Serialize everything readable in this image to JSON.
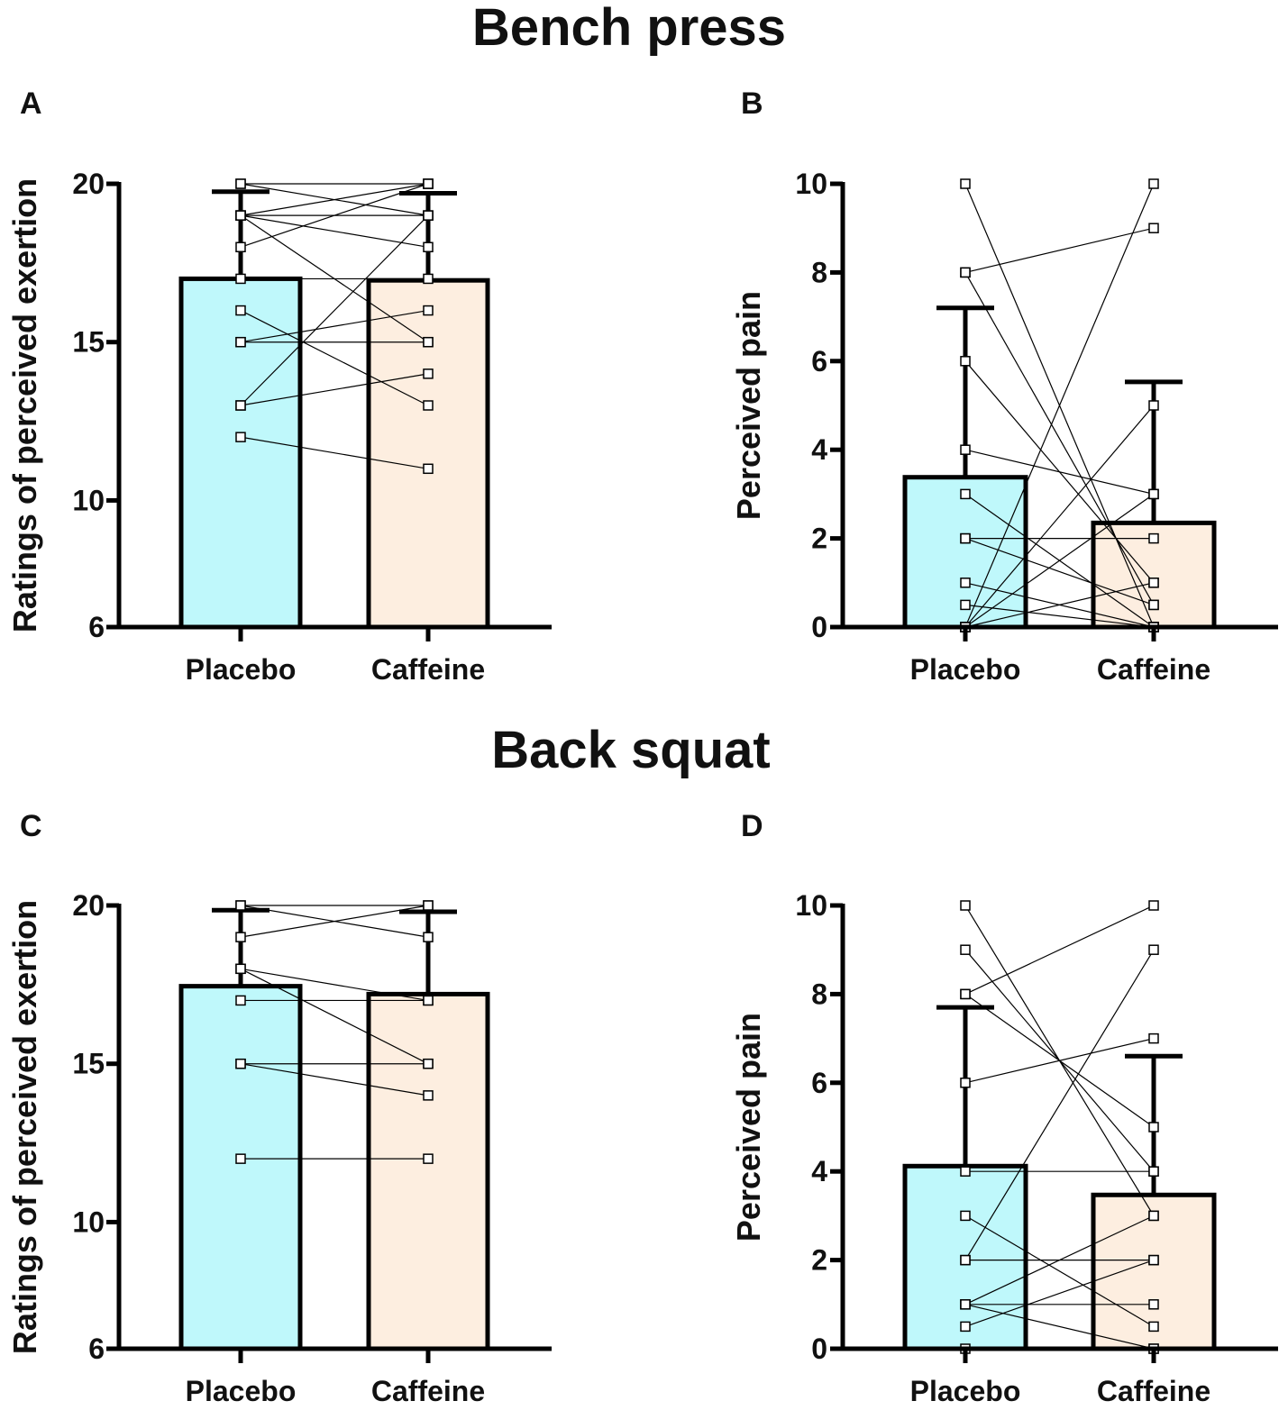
{
  "sections": [
    {
      "title": "Bench press"
    },
    {
      "title": "Back squat"
    }
  ],
  "chart_data": [
    {
      "type": "bar",
      "panel": "A",
      "ylabel": "Ratings of perceived exertion",
      "ylim": [
        6,
        20
      ],
      "yticks": [
        6,
        10,
        15,
        20
      ],
      "categories": [
        "Placebo",
        "Caffeine"
      ],
      "bar_colors": [
        "#bff8fb",
        "#fdeee0"
      ],
      "values": [
        17.0,
        16.95
      ],
      "error": [
        2.75,
        2.75
      ],
      "paired": [
        [
          20,
          19
        ],
        [
          20,
          20
        ],
        [
          19,
          20
        ],
        [
          19,
          19
        ],
        [
          19,
          18
        ],
        [
          19,
          15
        ],
        [
          18,
          20
        ],
        [
          17,
          17
        ],
        [
          16,
          13
        ],
        [
          15,
          16
        ],
        [
          15,
          15
        ],
        [
          13,
          14
        ],
        [
          13,
          19
        ],
        [
          12,
          11
        ]
      ]
    },
    {
      "type": "bar",
      "panel": "B",
      "ylabel": "Perceived pain",
      "ylim": [
        0,
        10
      ],
      "yticks": [
        0,
        2,
        4,
        6,
        8,
        10
      ],
      "categories": [
        "Placebo",
        "Caffeine"
      ],
      "bar_colors": [
        "#bff8fb",
        "#fdeee0"
      ],
      "values": [
        3.38,
        2.35
      ],
      "error": [
        3.82,
        3.18
      ],
      "paired": [
        [
          10,
          0
        ],
        [
          8,
          9
        ],
        [
          8,
          0.5
        ],
        [
          6,
          1
        ],
        [
          4,
          3
        ],
        [
          3,
          0
        ],
        [
          2,
          2
        ],
        [
          2,
          0.5
        ],
        [
          1,
          0
        ],
        [
          0.5,
          0
        ],
        [
          0,
          10
        ],
        [
          0,
          5
        ],
        [
          0,
          3
        ],
        [
          0,
          1
        ]
      ]
    },
    {
      "type": "bar",
      "panel": "C",
      "ylabel": "Ratings of perceived exertion",
      "ylim": [
        6,
        20
      ],
      "yticks": [
        6,
        10,
        15,
        20
      ],
      "categories": [
        "Placebo",
        "Caffeine"
      ],
      "bar_colors": [
        "#bff8fb",
        "#fdeee0"
      ],
      "values": [
        17.45,
        17.2
      ],
      "error": [
        2.4,
        2.6
      ],
      "paired": [
        [
          20,
          20
        ],
        [
          20,
          19
        ],
        [
          19,
          20
        ],
        [
          18,
          17
        ],
        [
          18,
          15
        ],
        [
          17,
          17
        ],
        [
          15,
          15
        ],
        [
          15,
          14
        ],
        [
          12,
          12
        ]
      ]
    },
    {
      "type": "bar",
      "panel": "D",
      "ylabel": "Perceived pain",
      "ylim": [
        0,
        10
      ],
      "yticks": [
        0,
        2,
        4,
        6,
        8,
        10
      ],
      "categories": [
        "Placebo",
        "Caffeine"
      ],
      "bar_colors": [
        "#bff8fb",
        "#fdeee0"
      ],
      "values": [
        4.12,
        3.47
      ],
      "error": [
        3.58,
        3.13
      ],
      "paired": [
        [
          10,
          3
        ],
        [
          9,
          4
        ],
        [
          8,
          10
        ],
        [
          8,
          5
        ],
        [
          6,
          7
        ],
        [
          4,
          4
        ],
        [
          3,
          0.5
        ],
        [
          2,
          9
        ],
        [
          2,
          2
        ],
        [
          1,
          3
        ],
        [
          1,
          1
        ],
        [
          1,
          0
        ],
        [
          0.5,
          2
        ],
        [
          0,
          0
        ]
      ]
    }
  ]
}
